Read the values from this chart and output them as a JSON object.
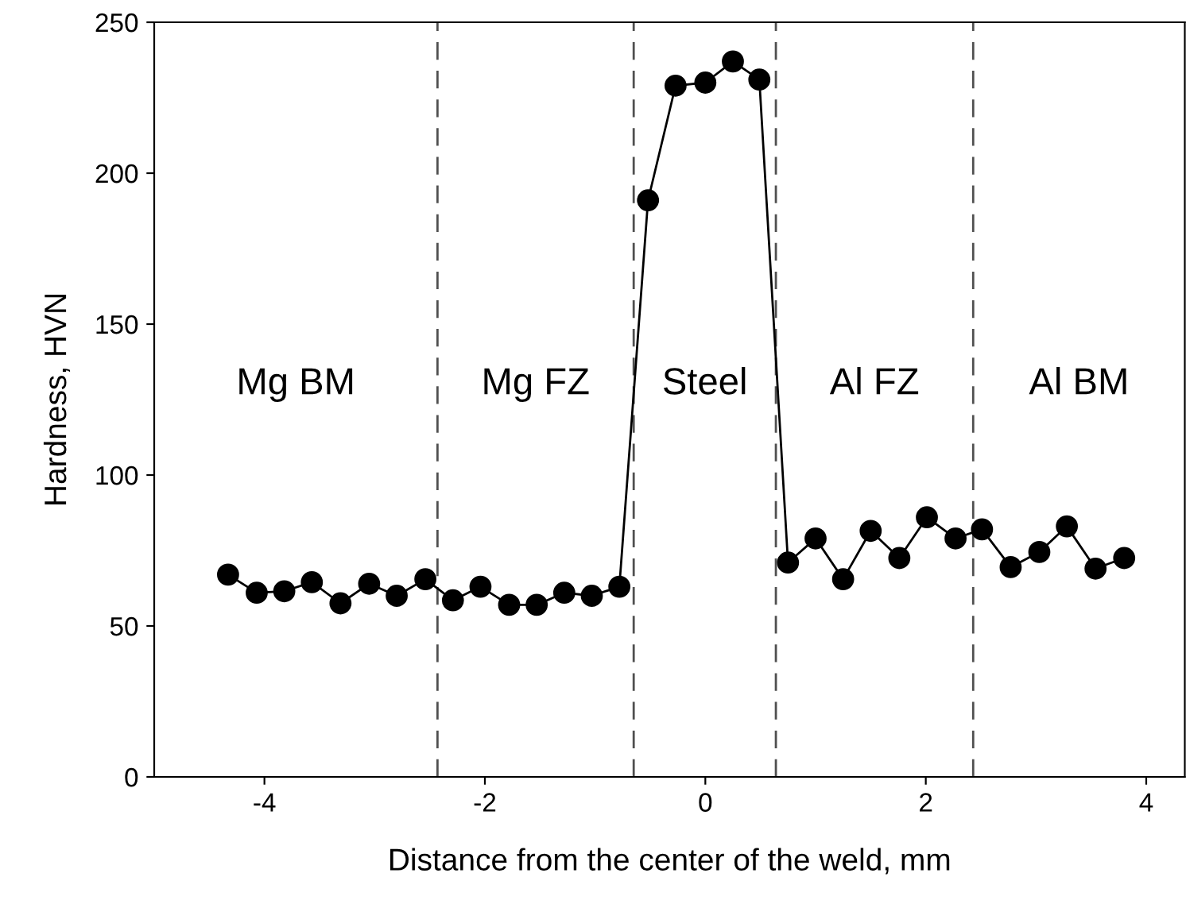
{
  "chart_data": {
    "type": "line",
    "xlabel": "Distance from the center of the weld, mm",
    "ylabel": "Hardness, HVN",
    "series": [
      {
        "color": "#000000",
        "x": [
          -4.33,
          -4.07,
          -3.82,
          -3.57,
          -3.31,
          -3.05,
          -2.8,
          -2.54,
          -2.29,
          -2.04,
          -1.78,
          -1.53,
          -1.28,
          -1.03,
          -0.78,
          -0.52,
          -0.27,
          0.0,
          0.25,
          0.49,
          0.75,
          1.0,
          1.25,
          1.5,
          1.76,
          2.01,
          2.27,
          2.51,
          2.77,
          3.03,
          3.28,
          3.54,
          3.8
        ],
        "values": [
          67,
          61,
          61.5,
          64.5,
          57.5,
          64,
          60,
          65.5,
          58.5,
          63,
          57,
          57,
          61,
          60,
          63,
          191,
          229,
          230,
          237,
          231,
          71,
          79,
          65.5,
          81.5,
          72.5,
          86,
          79,
          82,
          69.5,
          74.5,
          83,
          69,
          72.5
        ]
      }
    ],
    "marker": "circle",
    "line_style": "solid",
    "grid": false,
    "legend": false,
    "xlim": [
      -5,
      4.35
    ],
    "xticks": [
      -4,
      -2,
      0,
      2,
      4
    ],
    "ylim": [
      0,
      250
    ],
    "yticks": [
      0,
      50,
      100,
      150,
      200,
      250
    ],
    "ref_lines": [
      {
        "axis": "x",
        "value": -2.43,
        "color": "#505050",
        "line_style": "dashed"
      },
      {
        "axis": "x",
        "value": -0.65,
        "color": "#505050",
        "line_style": "dashed"
      },
      {
        "axis": "x",
        "value": 0.64,
        "color": "#505050",
        "line_style": "dashed"
      },
      {
        "axis": "x",
        "value": 2.43,
        "color": "#505050",
        "line_style": "dashed"
      }
    ],
    "annotations": [
      "Mg BM",
      "Mg FZ",
      "Steel",
      "Al FZ",
      "Al BM"
    ]
  }
}
